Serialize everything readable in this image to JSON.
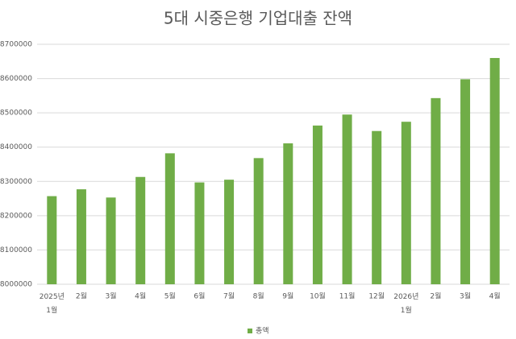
{
  "chart_data": {
    "type": "bar",
    "title": "5대 시중은행 기업대출 잔액",
    "categories": [
      "2025년 1월",
      "2월",
      "3월",
      "4월",
      "5월",
      "6월",
      "7월",
      "8월",
      "9월",
      "10월",
      "11월",
      "12월",
      "2026년 1월",
      "2월",
      "3월",
      "4월"
    ],
    "series": [
      {
        "name": "총액",
        "color": "#70ad47",
        "values": [
          8257000,
          8277000,
          8253000,
          8313000,
          8382000,
          8297000,
          8305000,
          8368000,
          8411000,
          8463000,
          8495000,
          8447000,
          8474000,
          8543000,
          8598000,
          8660000
        ]
      }
    ],
    "ylim": [
      8000000,
      8700000
    ],
    "yticks": [
      8000000,
      8100000,
      8200000,
      8300000,
      8400000,
      8500000,
      8600000,
      8700000
    ],
    "grid": true,
    "legend": "bottom"
  }
}
